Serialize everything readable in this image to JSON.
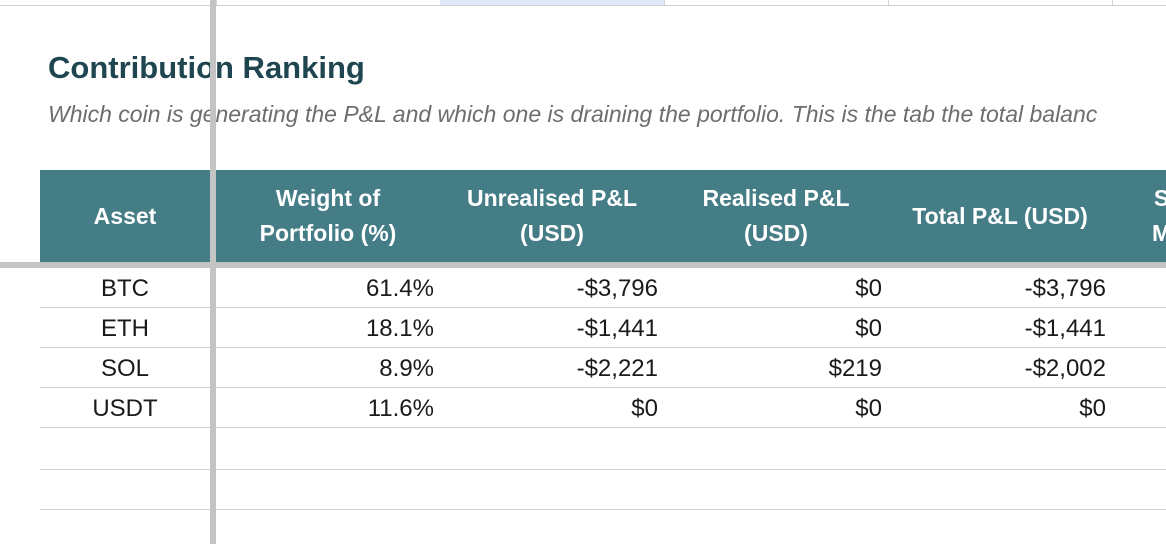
{
  "sheet": {
    "title": "Contribution Ranking",
    "subtitle": "Which coin is generating the P&L and which one is draining the portfolio. This is the tab the total balanc"
  },
  "table": {
    "headers": [
      {
        "line1": "Asset",
        "line2": ""
      },
      {
        "line1": "Weight of",
        "line2": "Portfolio (%)"
      },
      {
        "line1": "Unrealised P&L",
        "line2": "(USD)"
      },
      {
        "line1": "Realised P&L",
        "line2": "(USD)"
      },
      {
        "line1": "Total P&L (USD)",
        "line2": ""
      },
      {
        "line1": "S",
        "line2": "M"
      }
    ],
    "rows": [
      {
        "asset": "BTC",
        "weight": "61.4%",
        "unrealised": "-$3,796",
        "realised": "$0",
        "total": "-$3,796"
      },
      {
        "asset": "ETH",
        "weight": "18.1%",
        "unrealised": "-$1,441",
        "realised": "$0",
        "total": "-$1,441"
      },
      {
        "asset": "SOL",
        "weight": "8.9%",
        "unrealised": "-$2,221",
        "realised": "$219",
        "total": "-$2,002"
      },
      {
        "asset": "USDT",
        "weight": "11.6%",
        "unrealised": "$0",
        "realised": "$0",
        "total": "$0"
      }
    ]
  },
  "colors": {
    "header_bg": "#457d87",
    "title": "#1f4650",
    "freeze_line": "#c4c4c4"
  }
}
